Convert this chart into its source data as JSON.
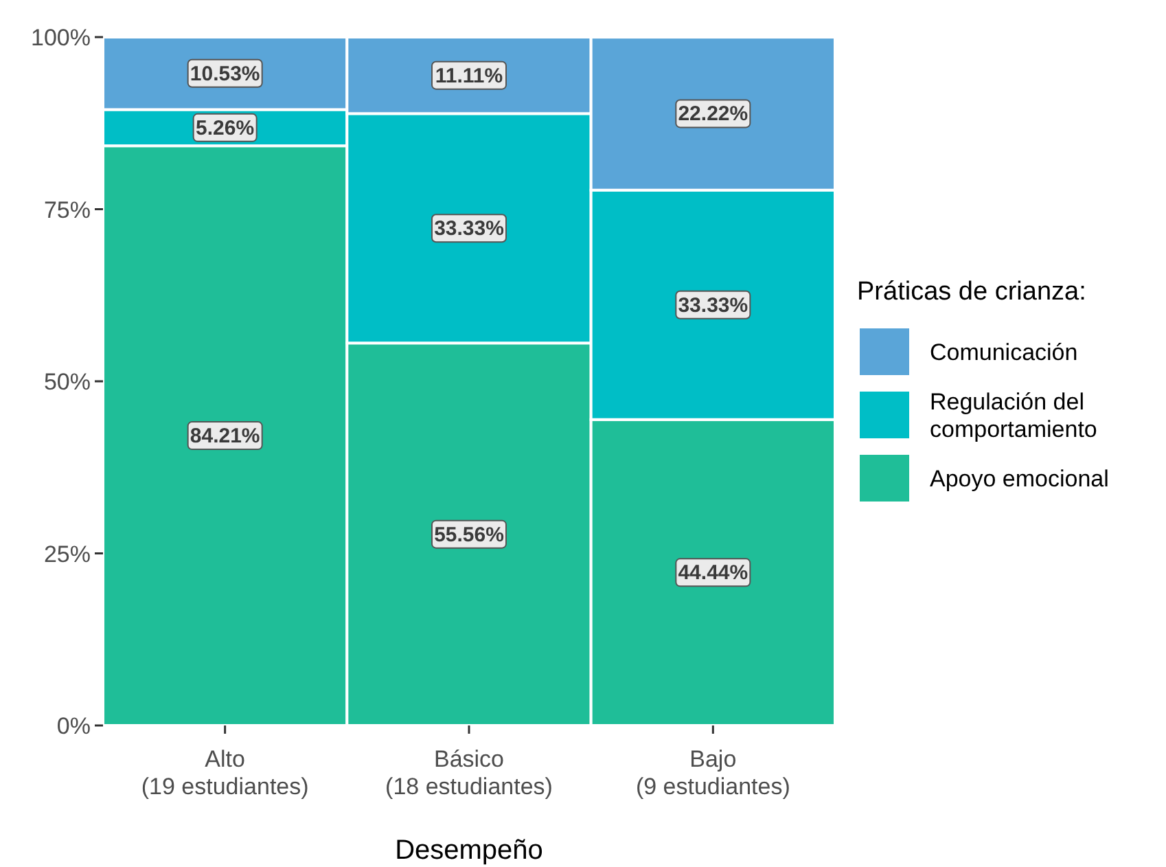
{
  "chart_data": {
    "type": "bar",
    "stacked": true,
    "xlabel": "Desempeño",
    "legend_title": "Práticas de crianza:",
    "legend": "right",
    "categories": [
      "Alto\n(19 estudiantes)",
      "Básico\n(18 estudiantes)",
      "Bajo\n(9 estudiantes)"
    ],
    "series": [
      {
        "name": "Apoyo emocional",
        "color": "#1fbe98",
        "values": [
          84.21,
          55.56,
          44.44
        ],
        "value_labels": [
          "84.21%",
          "55.56%",
          "44.44%"
        ]
      },
      {
        "name": "Regulación del comportamiento",
        "color": "#00bec6",
        "values": [
          5.26,
          33.33,
          33.33
        ],
        "value_labels": [
          "5.26%",
          "33.33%",
          "33.33%"
        ]
      },
      {
        "name": "Comunicación",
        "color": "#5aa5d8",
        "values": [
          10.53,
          11.11,
          22.22
        ],
        "value_labels": [
          "10.53%",
          "11.11%",
          "22.22%"
        ]
      }
    ],
    "ylim": [
      0,
      100
    ],
    "yticks": [
      {
        "value": 0,
        "label": "0%"
      },
      {
        "value": 25,
        "label": "25%"
      },
      {
        "value": 50,
        "label": "50%"
      },
      {
        "value": 75,
        "label": "75%"
      },
      {
        "value": 100,
        "label": "100%"
      }
    ]
  }
}
